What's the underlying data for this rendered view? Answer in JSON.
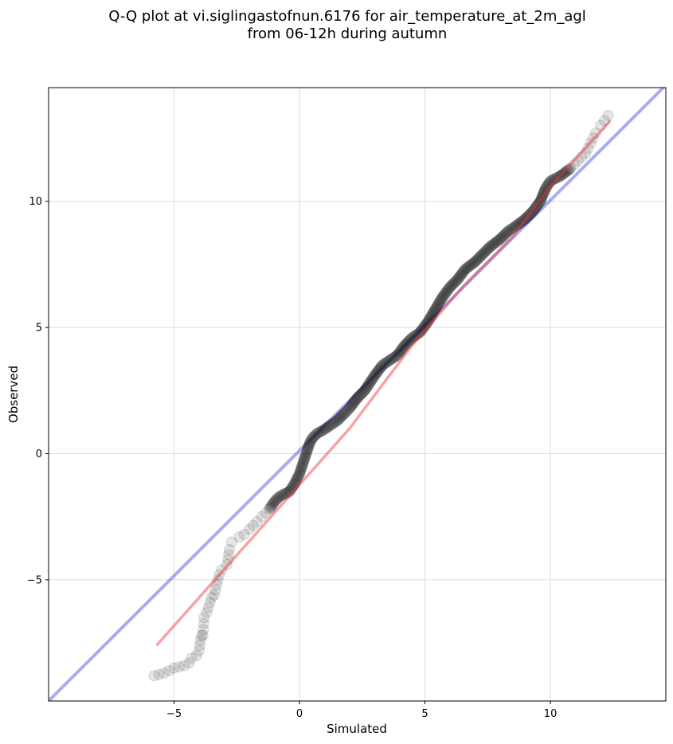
{
  "chart_data": {
    "type": "scatter",
    "title": "Q-Q plot at vi.siglingastofnun.6176 for air_temperature_at_2m_agl",
    "subtitle": "from 06-12h during autumn",
    "xlabel": "Simulated",
    "ylabel": "Observed",
    "xlim": [
      -10.0,
      14.6
    ],
    "ylim": [
      -9.8,
      14.5
    ],
    "xticks": [
      -5,
      0,
      5,
      10
    ],
    "yticks": [
      -5,
      0,
      5,
      10
    ],
    "xtick_labels": [
      "−5",
      "0",
      "5",
      "10"
    ],
    "ytick_labels": [
      "−5",
      "0",
      "5",
      "10"
    ],
    "grid": true,
    "points_color": "#000000",
    "identity_line": {
      "color": "#0000dd",
      "from": [
        -10.0,
        -9.8
      ],
      "to": [
        14.6,
        14.6
      ]
    },
    "fit_line": {
      "color": "#ee3333",
      "x": [
        -5.7,
        2.0,
        4.5,
        6.5,
        8.5,
        10.0,
        12.4
      ],
      "y": [
        -7.6,
        1.0,
        4.3,
        6.6,
        8.6,
        10.6,
        13.2
      ]
    },
    "quantiles": {
      "x": [
        -5.8,
        -5.6,
        -5.4,
        -5.0,
        -4.6,
        -4.4,
        -4.3,
        -4.1,
        -4.0,
        -3.95,
        -3.9,
        -3.85,
        -3.8,
        -3.7,
        -3.5,
        -3.4,
        -3.2,
        -3.1,
        -2.9,
        -2.85,
        -2.8,
        -2.7,
        -2.4,
        -2.2,
        -2.0,
        -1.7,
        -1.5,
        -1.2,
        -1.0,
        -0.8,
        -0.6,
        -0.4,
        -0.2,
        -0.1,
        0.0,
        0.1,
        0.2,
        0.3,
        0.4,
        0.5,
        0.7,
        0.9,
        1.2,
        1.5,
        1.8,
        2.0,
        2.3,
        2.6,
        3.0,
        3.3,
        3.6,
        3.9,
        4.2,
        4.5,
        4.8,
        5.1,
        5.4,
        5.7,
        6.0,
        6.3,
        6.6,
        7.0,
        7.3,
        7.6,
        8.0,
        8.3,
        8.6,
        9.0,
        9.3,
        9.6,
        9.8,
        10.0,
        10.4,
        10.8,
        11.1,
        11.4,
        11.6,
        11.8,
        12.0,
        12.3
      ],
      "y": [
        -8.8,
        -8.75,
        -8.7,
        -8.5,
        -8.4,
        -8.3,
        -8.1,
        -8.0,
        -7.8,
        -7.4,
        -7.2,
        -7.2,
        -6.5,
        -6.3,
        -5.7,
        -5.6,
        -4.8,
        -4.6,
        -4.4,
        -4.2,
        -3.8,
        -3.5,
        -3.3,
        -3.2,
        -3.0,
        -2.7,
        -2.5,
        -2.2,
        -1.9,
        -1.7,
        -1.6,
        -1.5,
        -1.2,
        -1.0,
        -0.8,
        -0.5,
        -0.2,
        0.1,
        0.4,
        0.6,
        0.8,
        0.9,
        1.1,
        1.3,
        1.6,
        1.8,
        2.2,
        2.5,
        3.1,
        3.5,
        3.7,
        3.9,
        4.3,
        4.6,
        4.8,
        5.2,
        5.7,
        6.2,
        6.6,
        6.9,
        7.3,
        7.6,
        7.9,
        8.2,
        8.5,
        8.8,
        9.0,
        9.3,
        9.6,
        10.0,
        10.5,
        10.8,
        11.0,
        11.3,
        11.6,
        11.9,
        12.3,
        12.7,
        13.0,
        13.4
      ]
    }
  }
}
